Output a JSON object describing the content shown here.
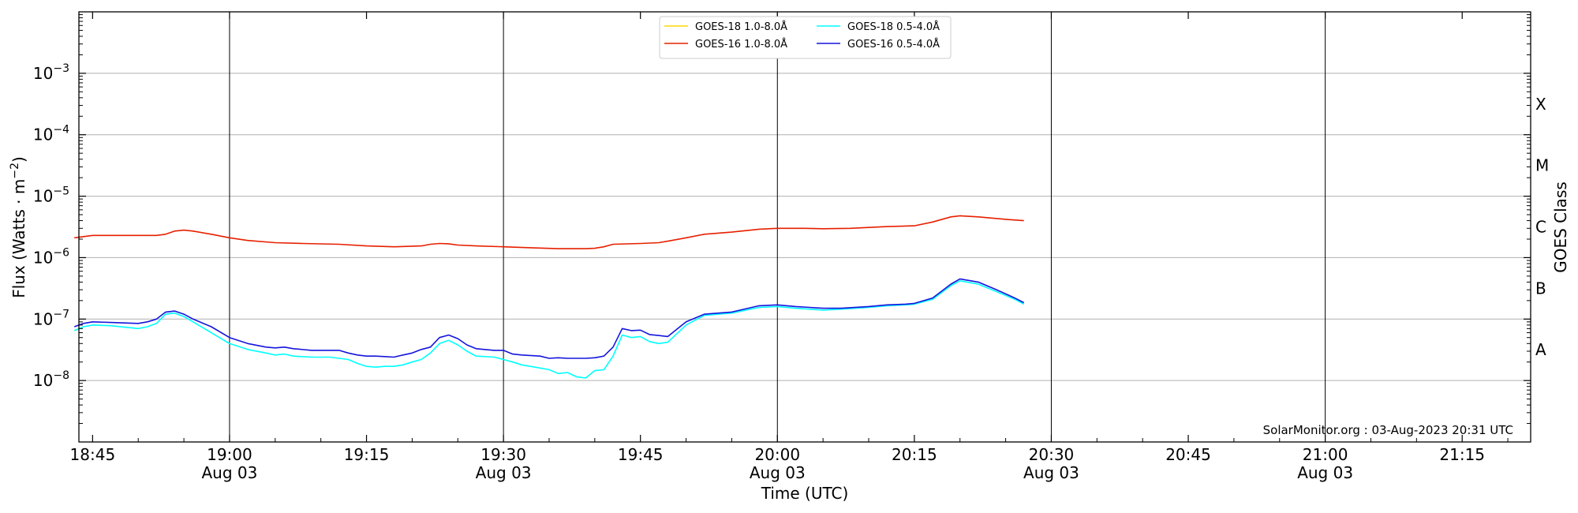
{
  "chart_data": {
    "type": "line",
    "ylabel": "Flux (Watts · m⁻²)",
    "xlabel": "Time (UTC)",
    "right_ylabel": "GOES Class",
    "yscale": "log",
    "ylim": [
      1e-09,
      0.01
    ],
    "xlim": [
      "18:43:30",
      "21:22:30"
    ],
    "ytick_labels": [
      {
        "exp": -8,
        "text": "10",
        "sup": "−8"
      },
      {
        "exp": -7,
        "text": "10",
        "sup": "−7"
      },
      {
        "exp": -6,
        "text": "10",
        "sup": "−6"
      },
      {
        "exp": -5,
        "text": "10",
        "sup": "−5"
      },
      {
        "exp": -4,
        "text": "10",
        "sup": "−4"
      },
      {
        "exp": -3,
        "text": "10",
        "sup": "−3"
      }
    ],
    "xtick_labels": [
      {
        "time": "18:45",
        "line1": "18:45",
        "line2": ""
      },
      {
        "time": "19:00",
        "line1": "19:00",
        "line2": "Aug 03"
      },
      {
        "time": "19:15",
        "line1": "19:15",
        "line2": ""
      },
      {
        "time": "19:30",
        "line1": "19:30",
        "line2": "Aug 03"
      },
      {
        "time": "19:45",
        "line1": "19:45",
        "line2": ""
      },
      {
        "time": "20:00",
        "line1": "20:00",
        "line2": "Aug 03"
      },
      {
        "time": "20:15",
        "line1": "20:15",
        "line2": ""
      },
      {
        "time": "20:30",
        "line1": "20:30",
        "line2": "Aug 03"
      },
      {
        "time": "20:45",
        "line1": "20:45",
        "line2": ""
      },
      {
        "time": "21:00",
        "line1": "21:00",
        "line2": "Aug 03"
      },
      {
        "time": "21:15",
        "line1": "21:15",
        "line2": ""
      }
    ],
    "goes_classes": [
      {
        "label": "A",
        "exp": -8
      },
      {
        "label": "B",
        "exp": -7
      },
      {
        "label": "C",
        "exp": -6
      },
      {
        "label": "M",
        "exp": -5
      },
      {
        "label": "X",
        "exp": -4
      }
    ],
    "grid": "horizontal at decades; vertical at 30-minute marks",
    "legend_position": "top-center",
    "series": [
      {
        "name": "GOES-18 1.0-8.0Å",
        "color": "#ffd700",
        "x": [],
        "y": []
      },
      {
        "name": "GOES-16 1.0-8.0Å",
        "color": "#e62000",
        "x": [
          "18:43",
          "18:45",
          "18:47",
          "18:50",
          "18:52",
          "18:53",
          "18:54",
          "18:55",
          "18:56",
          "18:58",
          "19:00",
          "19:02",
          "19:05",
          "19:08",
          "19:12",
          "19:15",
          "19:18",
          "19:21",
          "19:22",
          "19:23",
          "19:24",
          "19:25",
          "19:27",
          "19:30",
          "19:33",
          "19:36",
          "19:39",
          "19:40",
          "19:41",
          "19:42",
          "19:45",
          "19:47",
          "19:48",
          "19:50",
          "19:52",
          "19:55",
          "19:58",
          "20:00",
          "20:03",
          "20:05",
          "20:08",
          "20:10",
          "20:12",
          "20:15",
          "20:17",
          "20:19",
          "20:20",
          "20:22",
          "20:25",
          "20:27"
        ],
        "y": [
          2.1e-06,
          2.3e-06,
          2.3e-06,
          2.3e-06,
          2.3e-06,
          2.4e-06,
          2.7e-06,
          2.8e-06,
          2.7e-06,
          2.4e-06,
          2.1e-06,
          1.9e-06,
          1.75e-06,
          1.7e-06,
          1.65e-06,
          1.55e-06,
          1.5e-06,
          1.55e-06,
          1.65e-06,
          1.7e-06,
          1.68e-06,
          1.6e-06,
          1.55e-06,
          1.5e-06,
          1.45e-06,
          1.4e-06,
          1.4e-06,
          1.42e-06,
          1.5e-06,
          1.65e-06,
          1.7e-06,
          1.75e-06,
          1.85e-06,
          2.1e-06,
          2.4e-06,
          2.6e-06,
          2.9e-06,
          3e-06,
          3e-06,
          2.95e-06,
          3e-06,
          3.1e-06,
          3.2e-06,
          3.3e-06,
          3.8e-06,
          4.6e-06,
          4.8e-06,
          4.6e-06,
          4.2e-06,
          4e-06
        ]
      },
      {
        "name": "GOES-18 0.5-4.0Å",
        "color": "#00ffff",
        "x": [
          "18:43",
          "18:44",
          "18:45",
          "18:47",
          "18:50",
          "18:51",
          "18:52",
          "18:53",
          "18:54",
          "18:55",
          "18:56",
          "18:58",
          "19:00",
          "19:02",
          "19:04",
          "19:05",
          "19:06",
          "19:07",
          "19:09",
          "19:11",
          "19:12",
          "19:13",
          "19:14",
          "19:15",
          "19:16",
          "19:17",
          "19:18",
          "19:19",
          "19:20",
          "19:21",
          "19:22",
          "19:23",
          "19:24",
          "19:25",
          "19:26",
          "19:27",
          "19:29",
          "19:30",
          "19:31",
          "19:32",
          "19:34",
          "19:35",
          "19:36",
          "19:37",
          "19:38",
          "19:39",
          "19:40",
          "19:41",
          "19:42",
          "19:43",
          "19:44",
          "19:45",
          "19:46",
          "19:47",
          "19:48",
          "19:50",
          "19:52",
          "19:55",
          "19:58",
          "20:00",
          "20:02",
          "20:05",
          "20:07",
          "20:10",
          "20:12",
          "20:14",
          "20:15",
          "20:17",
          "20:19",
          "20:20",
          "20:22",
          "20:24",
          "20:26",
          "20:27"
        ],
        "y": [
          6.5e-08,
          7.5e-08,
          8e-08,
          7.8e-08,
          7e-08,
          7.5e-08,
          8.5e-08,
          1.2e-07,
          1.25e-07,
          1.1e-07,
          9e-08,
          6e-08,
          4e-08,
          3.2e-08,
          2.8e-08,
          2.6e-08,
          2.7e-08,
          2.5e-08,
          2.4e-08,
          2.4e-08,
          2.3e-08,
          2.2e-08,
          1.9e-08,
          1.7e-08,
          1.65e-08,
          1.7e-08,
          1.7e-08,
          1.8e-08,
          2e-08,
          2.2e-08,
          2.8e-08,
          4e-08,
          4.5e-08,
          3.8e-08,
          3e-08,
          2.5e-08,
          2.4e-08,
          2.2e-08,
          2e-08,
          1.8e-08,
          1.6e-08,
          1.5e-08,
          1.3e-08,
          1.35e-08,
          1.15e-08,
          1.1e-08,
          1.45e-08,
          1.5e-08,
          2.5e-08,
          5.5e-08,
          5e-08,
          5.2e-08,
          4.3e-08,
          4e-08,
          4.2e-08,
          8e-08,
          1.15e-07,
          1.25e-07,
          1.55e-07,
          1.6e-07,
          1.5e-07,
          1.4e-07,
          1.45e-07,
          1.55e-07,
          1.65e-07,
          1.7e-07,
          1.75e-07,
          2.1e-07,
          3.5e-07,
          4.2e-07,
          3.7e-07,
          2.8e-07,
          2.1e-07,
          1.75e-07
        ]
      },
      {
        "name": "GOES-16 0.5-4.0Å",
        "color": "#1515dd",
        "x": [
          "18:43",
          "18:44",
          "18:45",
          "18:47",
          "18:50",
          "18:51",
          "18:52",
          "18:53",
          "18:54",
          "18:55",
          "18:56",
          "18:58",
          "19:00",
          "19:02",
          "19:04",
          "19:05",
          "19:06",
          "19:07",
          "19:09",
          "19:11",
          "19:12",
          "19:13",
          "19:14",
          "19:15",
          "19:16",
          "19:17",
          "19:18",
          "19:19",
          "19:20",
          "19:21",
          "19:22",
          "19:23",
          "19:24",
          "19:25",
          "19:26",
          "19:27",
          "19:29",
          "19:30",
          "19:31",
          "19:32",
          "19:34",
          "19:35",
          "19:36",
          "19:37",
          "19:38",
          "19:39",
          "19:40",
          "19:41",
          "19:42",
          "19:43",
          "19:44",
          "19:45",
          "19:46",
          "19:47",
          "19:48",
          "19:50",
          "19:52",
          "19:55",
          "19:58",
          "20:00",
          "20:02",
          "20:05",
          "20:07",
          "20:10",
          "20:12",
          "20:14",
          "20:15",
          "20:17",
          "20:19",
          "20:20",
          "20:22",
          "20:24",
          "20:26",
          "20:27"
        ],
        "y": [
          7.5e-08,
          8.5e-08,
          9e-08,
          8.8e-08,
          8.5e-08,
          9e-08,
          1e-07,
          1.3e-07,
          1.35e-07,
          1.2e-07,
          1e-07,
          7.5e-08,
          5e-08,
          4e-08,
          3.5e-08,
          3.4e-08,
          3.5e-08,
          3.3e-08,
          3.1e-08,
          3.1e-08,
          3.1e-08,
          2.8e-08,
          2.6e-08,
          2.5e-08,
          2.5e-08,
          2.45e-08,
          2.4e-08,
          2.6e-08,
          2.8e-08,
          3.2e-08,
          3.5e-08,
          5e-08,
          5.5e-08,
          4.8e-08,
          3.8e-08,
          3.3e-08,
          3.1e-08,
          3.1e-08,
          2.7e-08,
          2.6e-08,
          2.5e-08,
          2.3e-08,
          2.35e-08,
          2.3e-08,
          2.3e-08,
          2.3e-08,
          2.35e-08,
          2.5e-08,
          3.5e-08,
          7e-08,
          6.5e-08,
          6.6e-08,
          5.6e-08,
          5.4e-08,
          5.2e-08,
          9e-08,
          1.2e-07,
          1.3e-07,
          1.65e-07,
          1.7e-07,
          1.6e-07,
          1.5e-07,
          1.5e-07,
          1.6e-07,
          1.7e-07,
          1.75e-07,
          1.8e-07,
          2.2e-07,
          3.7e-07,
          4.5e-07,
          4e-07,
          3e-07,
          2.2e-07,
          1.85e-07
        ]
      }
    ],
    "credit": "SolarMonitor.org : 03-Aug-2023 20:31 UTC"
  }
}
